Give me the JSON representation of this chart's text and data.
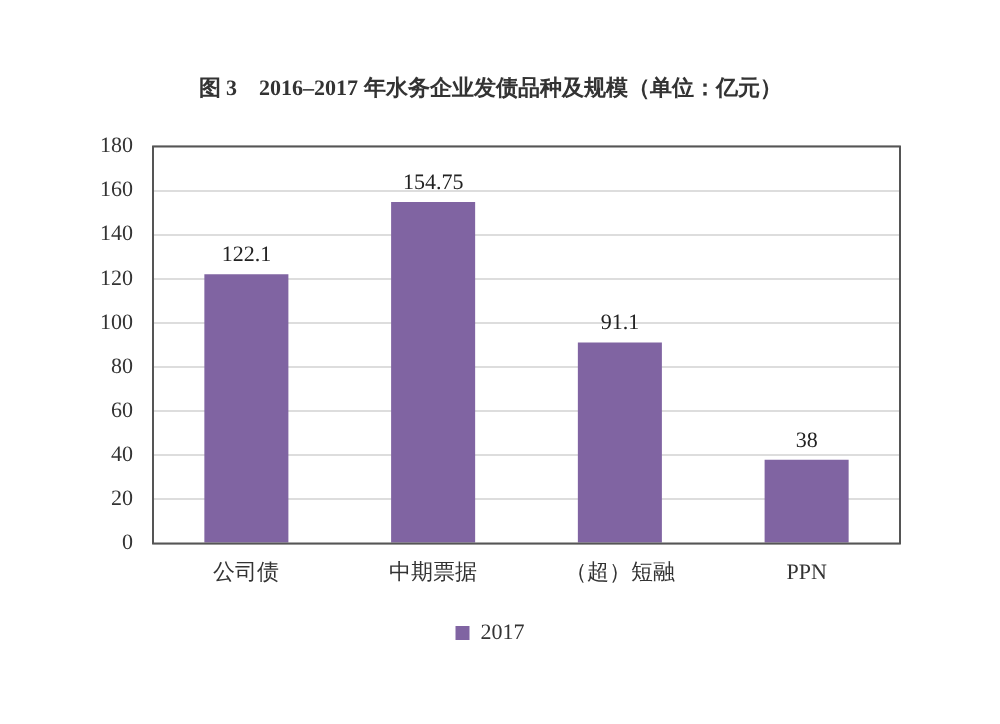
{
  "chart_data": {
    "type": "bar",
    "title": "图 3　2016–2017 年水务企业发债品种及规模（单位：亿元）",
    "categories": [
      "公司债",
      "中期票据",
      "（超）短融",
      "PPN"
    ],
    "series": [
      {
        "name": "2017",
        "color": "#8064a2",
        "values": [
          122.1,
          154.75,
          91.1,
          38
        ]
      }
    ],
    "ylim": [
      0,
      180
    ],
    "yticks": [
      0,
      20,
      40,
      60,
      80,
      100,
      120,
      140,
      160,
      180
    ],
    "grid": "y",
    "legend": "bottom",
    "data_labels": true
  }
}
